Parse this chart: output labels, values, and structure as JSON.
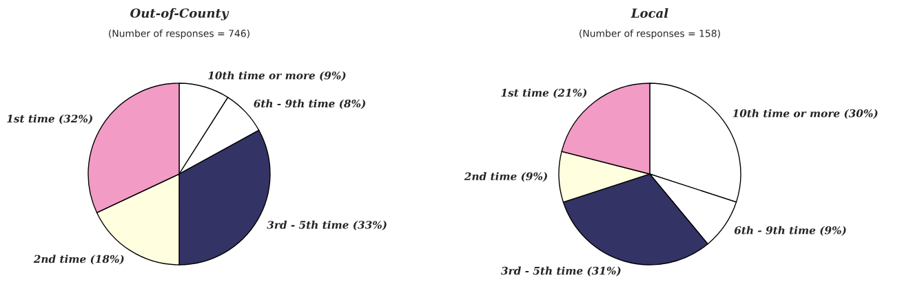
{
  "chart_data": [
    {
      "type": "pie",
      "title": "Out-of-County",
      "subtitle": "(Number of responses = 746)",
      "categories": [
        "10th time or more (9%)",
        "6th - 9th time (8%)",
        "3rd - 5th time (33%)",
        "2nd time (18%)",
        "1st time (32%)"
      ],
      "values": [
        9,
        8,
        33,
        18,
        32
      ],
      "colors": [
        "#ffffff",
        "#ffffff",
        "#333366",
        "#ffffe0",
        "#f29bc4"
      ],
      "legend": false
    },
    {
      "type": "pie",
      "title": "Local",
      "subtitle": "(Number of responses = 158)",
      "categories": [
        "10th time or more (30%)",
        "6th - 9th time (9%)",
        "3rd - 5th time (31%)",
        "2nd time (9%)",
        "1st time (21%)"
      ],
      "values": [
        30,
        9,
        31,
        9,
        21
      ],
      "colors": [
        "#ffffff",
        "#ffffff",
        "#333366",
        "#ffffe0",
        "#f29bc4"
      ],
      "legend": false
    }
  ]
}
